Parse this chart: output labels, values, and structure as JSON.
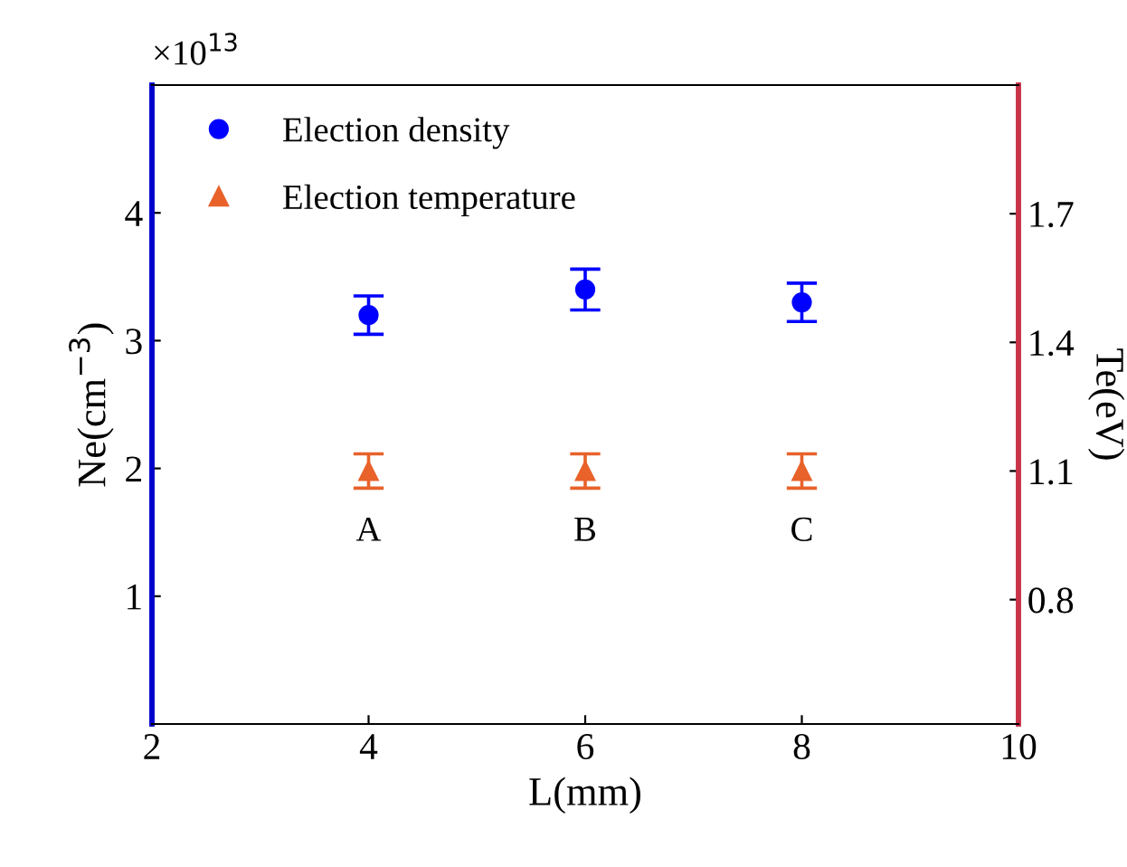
{
  "chart_data": {
    "type": "scatter",
    "xlabel": "L(mm)",
    "ylabel": "Ne(cm$^{−3}$)",
    "y2label": "Te(eV)",
    "x": [
      4,
      6,
      8
    ],
    "series": [
      {
        "name": "Election density",
        "color": "#0000ff",
        "marker": "circle",
        "values": [
          3.2,
          3.4,
          3.3
        ],
        "errors": [
          0.15,
          0.16,
          0.15
        ]
      },
      {
        "name": "Election temperature",
        "color": "#e8622a",
        "marker": "triangle",
        "axis": "y2",
        "values": [
          1.1,
          1.1,
          1.1
        ],
        "errors": [
          0.04,
          0.04,
          0.04
        ]
      }
    ],
    "xlim": [
      2,
      10
    ],
    "xticks": [
      2,
      4,
      6,
      8,
      10
    ],
    "ylim": [
      0,
      5
    ],
    "yticks": [
      1,
      2,
      3,
      4
    ],
    "y2lim": [
      0.51,
      2.0
    ],
    "y2ticks": [
      0.8,
      1.1,
      1.4,
      1.7
    ],
    "legend": "top left",
    "grid": false,
    "annotations": [
      "×10$^{13}$",
      "A",
      "B",
      "C"
    ]
  }
}
